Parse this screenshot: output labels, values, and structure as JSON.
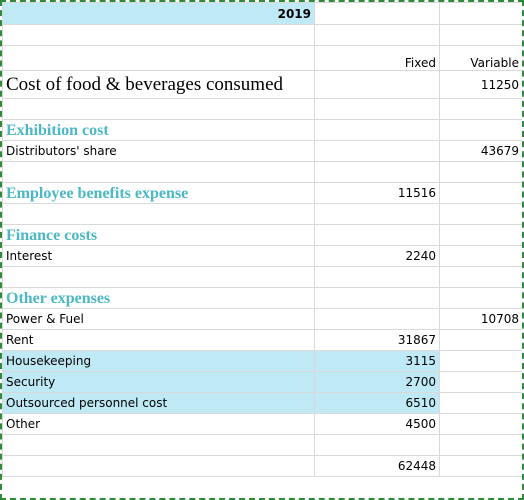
{
  "header": {
    "year": "2019"
  },
  "columns": {
    "fixed": "Fixed",
    "variable": "Variable"
  },
  "rows": [
    {
      "label": "Cost of food & beverages consumed",
      "variable": 11250
    },
    {
      "label": "Exhibition cost"
    },
    {
      "label": "Distributors' share",
      "variable": 43679
    },
    {
      "label": "Employee benefits expense",
      "fixed": 11516
    },
    {
      "label": "Finance costs"
    },
    {
      "label": "Interest",
      "fixed": 2240
    },
    {
      "label": "Other expenses"
    },
    {
      "label": "Power & Fuel",
      "variable": 10708
    },
    {
      "label": "Rent",
      "fixed": 31867
    },
    {
      "label": "Housekeeping",
      "fixed": 3115
    },
    {
      "label": "Security",
      "fixed": 2700
    },
    {
      "label": "Outsourced personnel cost",
      "fixed": 6510
    },
    {
      "label": "Other",
      "fixed": 4500
    }
  ],
  "total": {
    "fixed": 62448
  }
}
